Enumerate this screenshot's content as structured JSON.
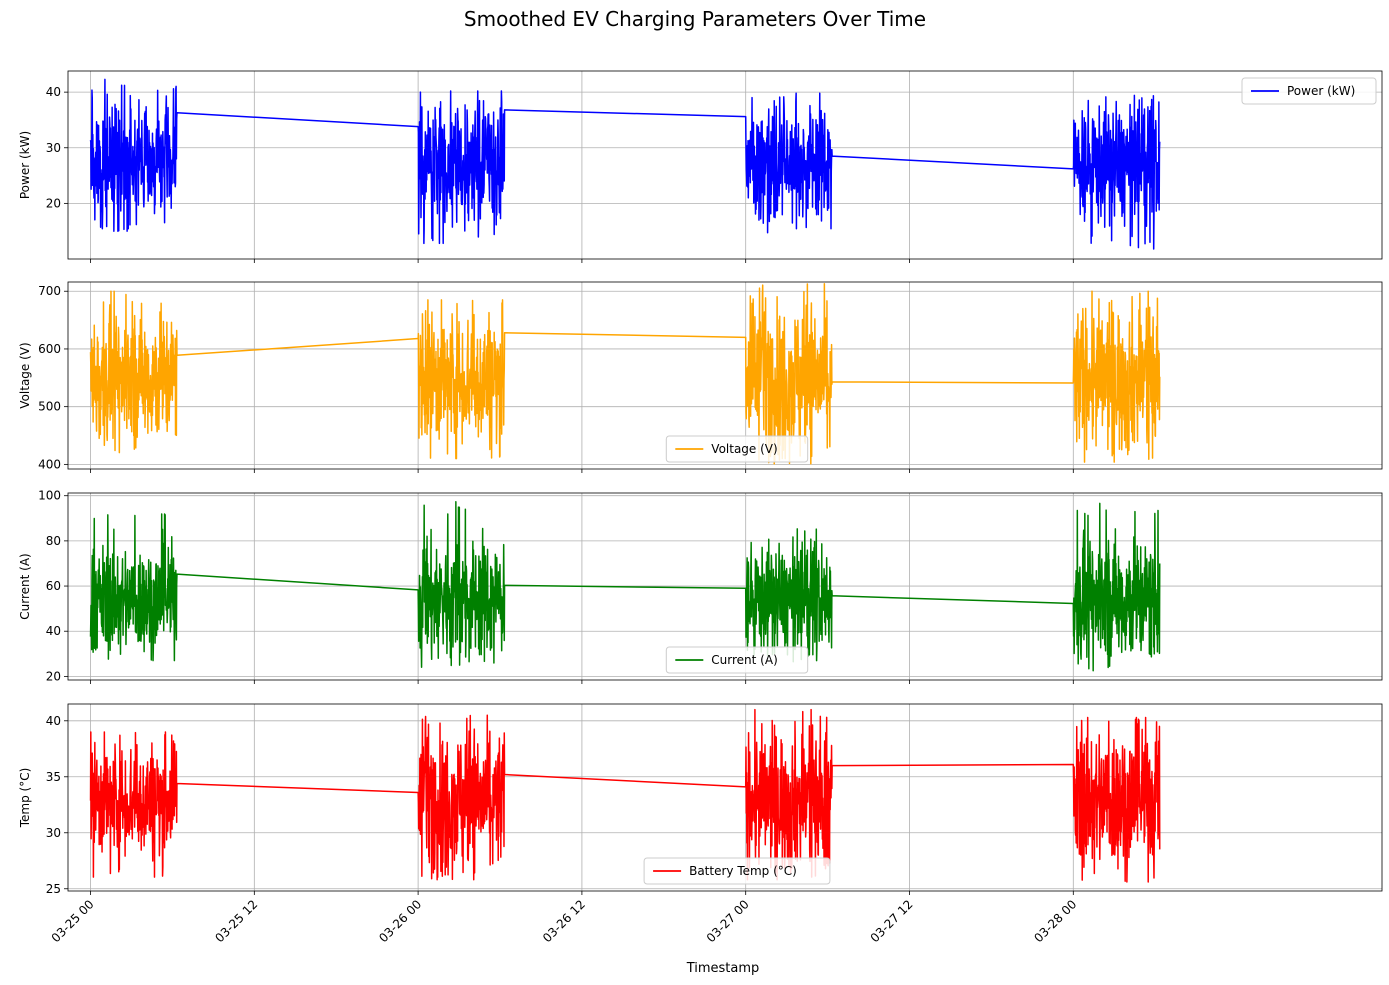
{
  "figure": {
    "title": "Smoothed EV Charging Parameters Over Time",
    "xlabel": "Timestamp"
  },
  "x_axis": {
    "type": "datetime",
    "range": [
      "2024-03-24T22:21",
      "2024-03-28T22:37"
    ],
    "ticks": [
      {
        "value": "2024-03-25T00:00",
        "label": "03-25 00"
      },
      {
        "value": "2024-03-25T12:00",
        "label": "03-25 12"
      },
      {
        "value": "2024-03-26T00:00",
        "label": "03-26 00"
      },
      {
        "value": "2024-03-26T12:00",
        "label": "03-26 12"
      },
      {
        "value": "2024-03-27T00:00",
        "label": "03-27 00"
      },
      {
        "value": "2024-03-27T12:00",
        "label": "03-27 12"
      },
      {
        "value": "2024-03-28T00:00",
        "label": "03-28 00"
      }
    ],
    "tick_rotation_deg": 45
  },
  "chart_data": [
    {
      "type": "line",
      "ylabel": "Power (kW)",
      "ylim": [
        10,
        43.8
      ],
      "yticks": [
        20,
        30,
        40
      ],
      "grid": true,
      "legend": {
        "label": "Power (kW)",
        "placement": "upper right"
      },
      "series": [
        {
          "name": "Power (kW)",
          "color": "#0000ff"
        }
      ],
      "sessions": [
        {
          "start": "2024-03-25T00:00",
          "end": "2024-03-25T06:20",
          "range": [
            15,
            42.3
          ],
          "mean": 27.5,
          "last": 36.3
        },
        {
          "start": "2024-03-26T00:00",
          "end": "2024-03-26T06:20",
          "first": 33.8,
          "range": [
            12.8,
            40.2
          ],
          "mean": 27.0,
          "last": 36.8
        },
        {
          "start": "2024-03-27T00:00",
          "end": "2024-03-27T06:20",
          "first": 35.6,
          "range": [
            14.1,
            39.8
          ],
          "mean": 27.5,
          "last": 28.5
        },
        {
          "start": "2024-03-28T00:00",
          "end": "2024-03-28T06:20",
          "first": 26.2,
          "range": [
            11.6,
            39.5
          ],
          "mean": 27.0
        }
      ]
    },
    {
      "type": "line",
      "ylabel": "Voltage (V)",
      "ylim": [
        392,
        716
      ],
      "yticks": [
        400,
        500,
        600,
        700
      ],
      "grid": true,
      "legend": {
        "label": "Voltage (V)",
        "placement": "lower center"
      },
      "series": [
        {
          "name": "Voltage (V)",
          "color": "#ffa500"
        }
      ],
      "sessions": [
        {
          "start": "2024-03-25T00:00",
          "end": "2024-03-25T06:20",
          "range": [
            415,
            700
          ],
          "mean": 550,
          "last": 589
        },
        {
          "start": "2024-03-26T00:00",
          "end": "2024-03-26T06:20",
          "first": 618,
          "range": [
            410,
            685
          ],
          "mean": 550,
          "last": 628
        },
        {
          "start": "2024-03-27T00:00",
          "end": "2024-03-27T06:20",
          "first": 620,
          "range": [
            401,
            713
          ],
          "mean": 550,
          "last": 543
        },
        {
          "start": "2024-03-28T00:00",
          "end": "2024-03-28T06:20",
          "first": 541,
          "range": [
            404,
            700
          ],
          "mean": 550
        }
      ]
    },
    {
      "type": "line",
      "ylabel": "Current (A)",
      "ylim": [
        18.4,
        101.2
      ],
      "yticks": [
        20,
        40,
        60,
        80,
        100
      ],
      "grid": true,
      "legend": {
        "label": "Current (A)",
        "placement": "lower center"
      },
      "series": [
        {
          "name": "Current (A)",
          "color": "#008000"
        }
      ],
      "sessions": [
        {
          "start": "2024-03-25T00:00",
          "end": "2024-03-25T06:20",
          "range": [
            27,
            92.5
          ],
          "mean": 54,
          "last": 65.3
        },
        {
          "start": "2024-03-26T00:00",
          "end": "2024-03-26T06:20",
          "first": 58.3,
          "range": [
            22.5,
            97.5
          ],
          "mean": 54,
          "last": 60.3
        },
        {
          "start": "2024-03-27T00:00",
          "end": "2024-03-27T06:20",
          "first": 59.0,
          "range": [
            26.5,
            85.5
          ],
          "mean": 54,
          "last": 55.7
        },
        {
          "start": "2024-03-28T00:00",
          "end": "2024-03-28T06:20",
          "first": 52.3,
          "range": [
            21.2,
            98
          ],
          "mean": 54
        }
      ]
    },
    {
      "type": "line",
      "ylabel": "Temp (°C)",
      "ylim": [
        24.8,
        41.5
      ],
      "yticks": [
        25,
        30,
        35,
        40
      ],
      "grid": true,
      "legend": {
        "label": "Battery Temp (°C)",
        "placement": "lower center"
      },
      "series": [
        {
          "name": "Battery Temp (°C)",
          "color": "#ff0000"
        }
      ],
      "sessions": [
        {
          "start": "2024-03-25T00:00",
          "end": "2024-03-25T06:20",
          "range": [
            26,
            39
          ],
          "mean": 33,
          "last": 34.4
        },
        {
          "start": "2024-03-26T00:00",
          "end": "2024-03-26T06:20",
          "first": 33.6,
          "range": [
            25.8,
            40.5
          ],
          "mean": 33,
          "last": 35.2
        },
        {
          "start": "2024-03-27T00:00",
          "end": "2024-03-27T06:20",
          "first": 34.1,
          "range": [
            25.8,
            41
          ],
          "mean": 33,
          "last": 36.0
        },
        {
          "start": "2024-03-28T00:00",
          "end": "2024-03-28T06:20",
          "first": 36.1,
          "range": [
            25.6,
            40.3
          ],
          "mean": 33
        }
      ]
    }
  ]
}
